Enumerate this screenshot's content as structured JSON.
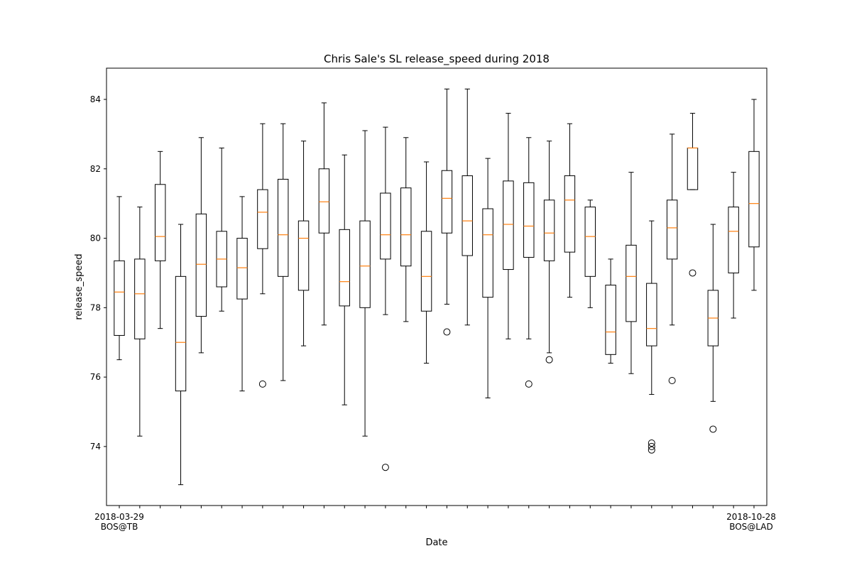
{
  "chart_data": {
    "type": "boxplot",
    "title": "Chris Sale's SL release_speed during 2018",
    "xlabel": "Date",
    "ylabel": "release_speed",
    "ylim": [
      72.3,
      84.9
    ],
    "yticks": [
      74,
      76,
      78,
      80,
      82,
      84
    ],
    "grid": false,
    "colors": {
      "box": "#000000",
      "median": "#ff7f0e",
      "background": "#ffffff"
    },
    "first_label": [
      "2018-03-29",
      "BOS@TB"
    ],
    "last_label": [
      "2018-10-28",
      "BOS@LAD"
    ],
    "boxes": [
      {
        "whislo": 76.5,
        "q1": 77.2,
        "med": 78.45,
        "q3": 79.35,
        "whishi": 81.2,
        "fliers": []
      },
      {
        "whislo": 74.3,
        "q1": 77.1,
        "med": 78.4,
        "q3": 79.4,
        "whishi": 80.9,
        "fliers": []
      },
      {
        "whislo": 77.4,
        "q1": 79.35,
        "med": 80.05,
        "q3": 81.55,
        "whishi": 82.5,
        "fliers": []
      },
      {
        "whislo": 72.9,
        "q1": 75.6,
        "med": 77.0,
        "q3": 78.9,
        "whishi": 80.4,
        "fliers": []
      },
      {
        "whislo": 76.7,
        "q1": 77.75,
        "med": 79.25,
        "q3": 80.7,
        "whishi": 82.9,
        "fliers": []
      },
      {
        "whislo": 77.9,
        "q1": 78.6,
        "med": 79.4,
        "q3": 80.2,
        "whishi": 82.6,
        "fliers": []
      },
      {
        "whislo": 75.6,
        "q1": 78.25,
        "med": 79.15,
        "q3": 80.0,
        "whishi": 81.2,
        "fliers": []
      },
      {
        "whislo": 78.4,
        "q1": 79.7,
        "med": 80.75,
        "q3": 81.4,
        "whishi": 83.3,
        "fliers": [
          75.8
        ]
      },
      {
        "whislo": 75.9,
        "q1": 78.9,
        "med": 80.1,
        "q3": 81.7,
        "whishi": 83.3,
        "fliers": []
      },
      {
        "whislo": 76.9,
        "q1": 78.5,
        "med": 80.0,
        "q3": 80.5,
        "whishi": 82.8,
        "fliers": []
      },
      {
        "whislo": 77.5,
        "q1": 80.15,
        "med": 81.05,
        "q3": 82.0,
        "whishi": 83.9,
        "fliers": []
      },
      {
        "whislo": 75.2,
        "q1": 78.05,
        "med": 78.75,
        "q3": 80.25,
        "whishi": 82.4,
        "fliers": []
      },
      {
        "whislo": 74.3,
        "q1": 78.0,
        "med": 79.2,
        "q3": 80.5,
        "whishi": 83.1,
        "fliers": []
      },
      {
        "whislo": 77.8,
        "q1": 79.4,
        "med": 80.1,
        "q3": 81.3,
        "whishi": 83.2,
        "fliers": [
          73.4
        ]
      },
      {
        "whislo": 77.6,
        "q1": 79.2,
        "med": 80.1,
        "q3": 81.45,
        "whishi": 82.9,
        "fliers": []
      },
      {
        "whislo": 76.4,
        "q1": 77.9,
        "med": 78.9,
        "q3": 80.2,
        "whishi": 82.2,
        "fliers": []
      },
      {
        "whislo": 78.1,
        "q1": 80.15,
        "med": 81.15,
        "q3": 81.95,
        "whishi": 84.3,
        "fliers": [
          77.3
        ]
      },
      {
        "whislo": 77.5,
        "q1": 79.5,
        "med": 80.5,
        "q3": 81.8,
        "whishi": 84.3,
        "fliers": []
      },
      {
        "whislo": 75.4,
        "q1": 78.3,
        "med": 80.1,
        "q3": 80.85,
        "whishi": 82.3,
        "fliers": []
      },
      {
        "whislo": 77.1,
        "q1": 79.1,
        "med": 80.4,
        "q3": 81.65,
        "whishi": 83.6,
        "fliers": []
      },
      {
        "whislo": 77.1,
        "q1": 79.45,
        "med": 80.35,
        "q3": 81.6,
        "whishi": 82.9,
        "fliers": [
          75.8
        ]
      },
      {
        "whislo": 76.7,
        "q1": 79.35,
        "med": 80.15,
        "q3": 81.1,
        "whishi": 82.8,
        "fliers": [
          76.5
        ]
      },
      {
        "whislo": 78.3,
        "q1": 79.6,
        "med": 81.1,
        "q3": 81.8,
        "whishi": 83.3,
        "fliers": []
      },
      {
        "whislo": 78.0,
        "q1": 78.9,
        "med": 80.05,
        "q3": 80.9,
        "whishi": 81.1,
        "fliers": []
      },
      {
        "whislo": 76.4,
        "q1": 76.65,
        "med": 77.3,
        "q3": 78.65,
        "whishi": 79.4,
        "fliers": []
      },
      {
        "whislo": 76.1,
        "q1": 77.6,
        "med": 78.9,
        "q3": 79.8,
        "whishi": 81.9,
        "fliers": []
      },
      {
        "whislo": 75.5,
        "q1": 76.9,
        "med": 77.4,
        "q3": 78.7,
        "whishi": 80.5,
        "fliers": [
          74.1,
          74.0,
          73.9
        ]
      },
      {
        "whislo": 77.5,
        "q1": 79.4,
        "med": 80.3,
        "q3": 81.1,
        "whishi": 83.0,
        "fliers": [
          75.9
        ]
      },
      {
        "whislo": 81.4,
        "q1": 81.4,
        "med": 82.6,
        "q3": 82.6,
        "whishi": 83.6,
        "fliers": [
          79.0
        ]
      },
      {
        "whislo": 75.3,
        "q1": 76.9,
        "med": 77.7,
        "q3": 78.5,
        "whishi": 80.4,
        "fliers": [
          74.5
        ]
      },
      {
        "whislo": 77.7,
        "q1": 79.0,
        "med": 80.2,
        "q3": 80.9,
        "whishi": 81.9,
        "fliers": []
      },
      {
        "whislo": 78.5,
        "q1": 79.75,
        "med": 81.0,
        "q3": 82.5,
        "whishi": 84.0,
        "fliers": []
      }
    ]
  }
}
